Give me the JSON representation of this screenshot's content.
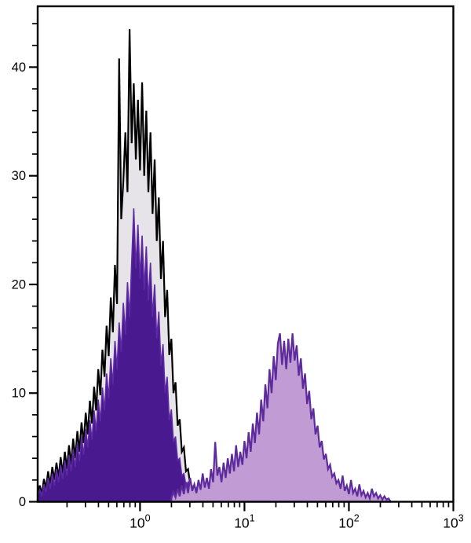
{
  "chart_data": {
    "type": "area",
    "style": "flow-cytometry-histogram-overlay",
    "title": "",
    "xlabel": "",
    "ylabel": "",
    "grid": false,
    "legend": null,
    "x_axis": {
      "scale": "log10",
      "min": 0.105,
      "max": 1000,
      "log_min": -0.98,
      "log_max": 3.0,
      "major_tick_logs": [
        0,
        1,
        2,
        3
      ],
      "tick_labels": [
        {
          "base": "10",
          "exp": "0"
        },
        {
          "base": "10",
          "exp": "1"
        },
        {
          "base": "10",
          "exp": "2"
        },
        {
          "base": "10",
          "exp": "3"
        }
      ],
      "minor_tick_mantissas": [
        2,
        3,
        4,
        5,
        6,
        7,
        8,
        9
      ]
    },
    "y_axis": {
      "min": 0,
      "max": 45.6,
      "major_step": 10,
      "minor_step": 2,
      "major_tick_values": [
        0,
        10,
        20,
        30,
        40
      ],
      "tick_labels": [
        "0",
        "10",
        "20",
        "30",
        "40"
      ]
    },
    "series": [
      {
        "name": "black-open-histogram-gray-fill",
        "peak_x": 0.85,
        "peak_y": 43.5,
        "fill": "#e6e4e8",
        "stroke": "#000000",
        "stroke_width": 2.2,
        "log_start": -0.98,
        "log_step": 0.02,
        "values": [
          0.8,
          1.5,
          0.7,
          2.1,
          1.2,
          2.8,
          1.5,
          3.2,
          2.0,
          3.6,
          2.2,
          4.1,
          2.6,
          4.6,
          3.0,
          5.2,
          3.4,
          5.8,
          4.0,
          6.5,
          4.6,
          7.3,
          5.4,
          8.2,
          6.2,
          9.3,
          7.2,
          10.6,
          8.4,
          12.2,
          9.8,
          14.0,
          11.5,
          16.2,
          13.4,
          18.8,
          15.6,
          21.8,
          18.2,
          40.8,
          26.0,
          29.5,
          34.0,
          28.5,
          43.5,
          33.0,
          38.5,
          31.5,
          37.0,
          30.5,
          38.6,
          30.0,
          36.0,
          28.5,
          34.0,
          26.5,
          31.5,
          24.0,
          28.0,
          20.5,
          24.0,
          17.0,
          19.5,
          13.5,
          15.0,
          10.0,
          11.0,
          7.0,
          7.6,
          4.6,
          5.0,
          2.8,
          3.0,
          1.6,
          1.0,
          0.3
        ]
      },
      {
        "name": "dark-purple-filled-histogram",
        "peak_x": 0.87,
        "peak_y": 27.0,
        "fill": "#48198f",
        "stroke": "#5d2aa4",
        "stroke_width": 1.6,
        "log_start": -0.98,
        "log_step": 0.02,
        "values": [
          0.5,
          1.1,
          0.6,
          1.6,
          0.9,
          2.2,
          1.2,
          2.6,
          1.5,
          3.0,
          1.8,
          3.4,
          2.1,
          3.8,
          2.4,
          4.3,
          2.8,
          4.8,
          3.2,
          5.4,
          3.7,
          6.0,
          4.3,
          6.7,
          5.0,
          7.5,
          5.7,
          8.4,
          6.5,
          9.4,
          7.4,
          10.5,
          8.4,
          11.8,
          9.5,
          13.2,
          10.8,
          14.8,
          12.2,
          16.5,
          13.8,
          18.3,
          15.4,
          20.2,
          17.0,
          22.0,
          27.0,
          21.5,
          25.5,
          20.5,
          24.5,
          19.5,
          23.5,
          18.5,
          22.0,
          17.0,
          20.0,
          15.0,
          17.5,
          12.5,
          14.5,
          10.0,
          11.5,
          7.5,
          8.5,
          5.5,
          6.0,
          3.8,
          4.0,
          2.4,
          2.6,
          1.5,
          1.8,
          0.9,
          1.4,
          0.6,
          1.2,
          0.5,
          1.0,
          0.4,
          1.3,
          0.6,
          1.6,
          0.7,
          1.2,
          0.5,
          1.8,
          0.8,
          1.4,
          0.6,
          2.2,
          0.9,
          1.5,
          0.6,
          2.0,
          0.8,
          1.3,
          0.5,
          1.0,
          0.4,
          0.8,
          0.3,
          0.1
        ]
      },
      {
        "name": "light-purple-filled-histogram",
        "peak_x": 25,
        "peak_y": 15.5,
        "fill": "#c09bd4",
        "stroke": "#5e2b9d",
        "stroke_width": 2.2,
        "log_start": 0.3,
        "log_step": 0.02,
        "values": [
          0.3,
          0.9,
          0.4,
          1.2,
          0.5,
          1.5,
          0.7,
          1.8,
          0.8,
          2.2,
          1.0,
          1.6,
          0.8,
          2.0,
          1.1,
          2.6,
          1.3,
          2.2,
          1.2,
          3.0,
          1.8,
          5.5,
          2.4,
          3.2,
          1.8,
          3.6,
          2.2,
          4.0,
          2.6,
          4.4,
          2.8,
          5.2,
          3.2,
          4.6,
          3.4,
          5.6,
          4.0,
          6.4,
          4.6,
          7.2,
          5.4,
          8.2,
          6.2,
          9.4,
          7.4,
          10.8,
          8.6,
          12.2,
          10.0,
          13.4,
          11.2,
          14.6,
          15.5,
          12.6,
          14.8,
          12.2,
          15.0,
          12.8,
          15.5,
          13.0,
          14.4,
          11.6,
          13.2,
          10.4,
          11.8,
          9.0,
          10.2,
          7.6,
          8.6,
          6.2,
          7.0,
          5.0,
          5.6,
          3.9,
          4.4,
          3.0,
          3.4,
          2.3,
          2.6,
          1.7,
          2.0,
          1.2,
          2.4,
          1.0,
          1.5,
          0.7,
          2.0,
          0.8,
          1.2,
          0.5,
          1.6,
          0.6,
          1.0,
          0.4,
          0.8,
          0.3,
          1.2,
          0.5,
          0.8,
          0.3,
          0.6,
          0.2,
          0.5,
          0.2,
          0.3,
          0.0
        ]
      }
    ],
    "plot_box_color": "#000000",
    "background_color": "#ffffff"
  }
}
